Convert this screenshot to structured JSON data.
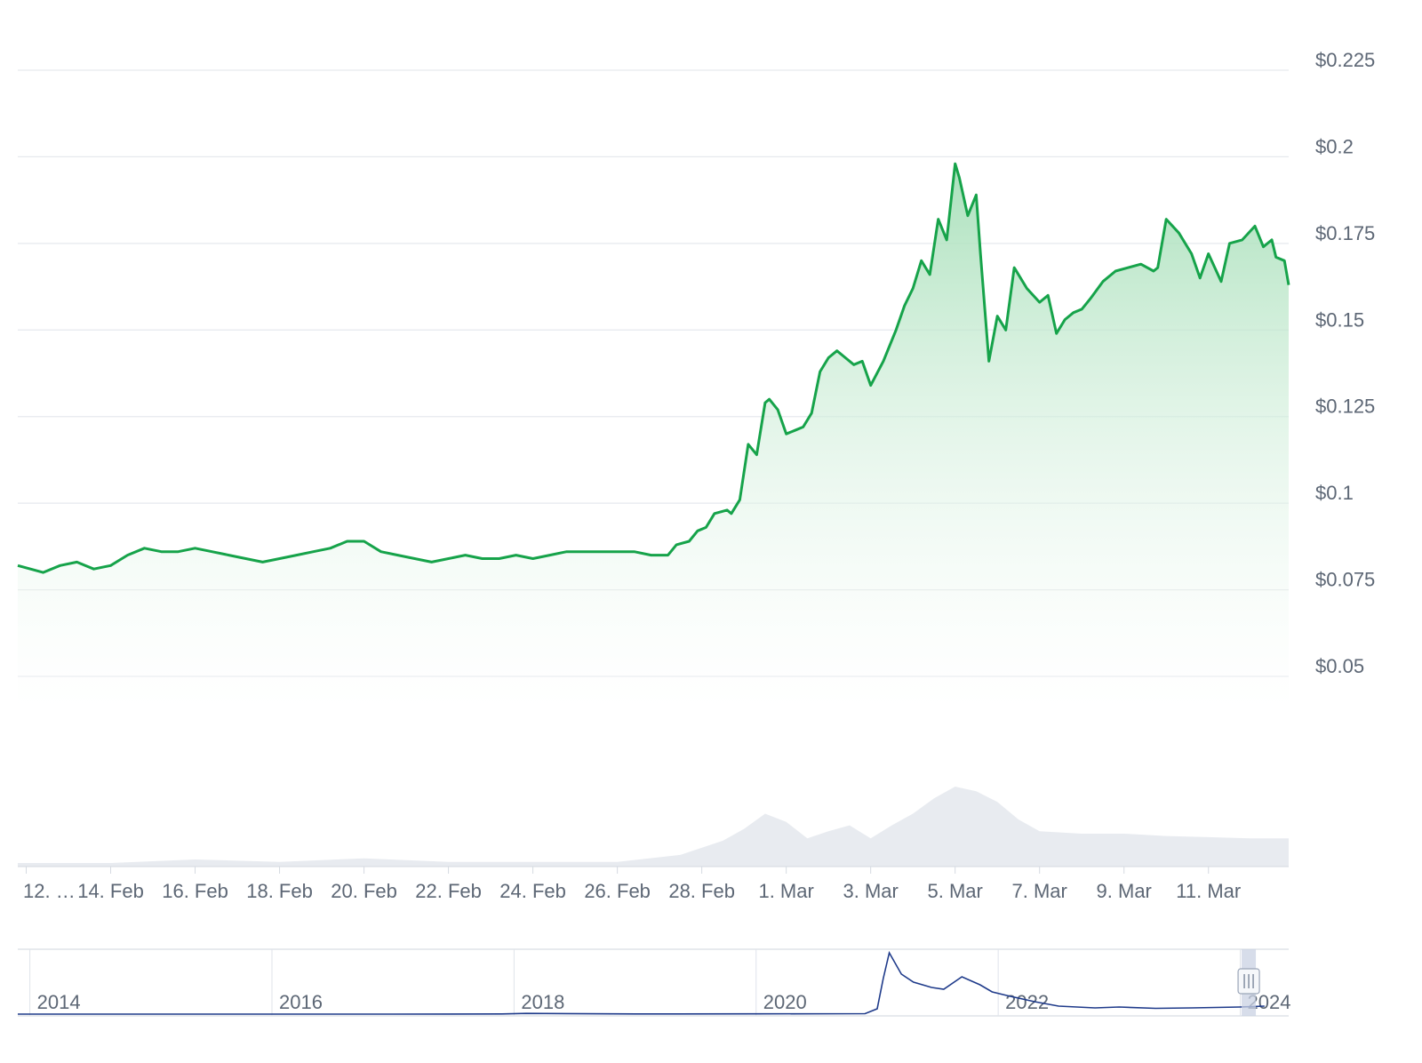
{
  "chart_data": {
    "type": "area",
    "title": "",
    "xlabel": "",
    "ylabel": "",
    "ylim": [
      0.04,
      0.235
    ],
    "y_ticks": [
      "$0.225",
      "$0.2",
      "$0.175",
      "$0.15",
      "$0.125",
      "$0.1",
      "$0.075",
      "$0.05"
    ],
    "y_tick_values": [
      0.225,
      0.2,
      0.175,
      0.15,
      0.125,
      0.1,
      0.075,
      0.05
    ],
    "x_ticks": [
      "12. …",
      "14. Feb",
      "16. Feb",
      "18. Feb",
      "20. Feb",
      "22. Feb",
      "24. Feb",
      "26. Feb",
      "28. Feb",
      "1. Mar",
      "3. Mar",
      "5. Mar",
      "7. Mar",
      "9. Mar",
      "11. Mar"
    ],
    "x_tick_days": [
      0,
      2,
      4,
      6,
      8,
      10,
      12,
      14,
      16,
      18,
      20,
      22,
      24,
      26,
      28
    ],
    "x_range_days": [
      -0.2,
      29.9
    ],
    "grid": true,
    "colors": {
      "line": "#16a34a",
      "fill_top": "#b7e4c7",
      "volume": "#e8ebf0",
      "navigator_line": "#1e3a8a",
      "navigator_handle": "#c9d2e3"
    },
    "series": [
      {
        "name": "",
        "x_days": [
          -0.2,
          0.1,
          0.4,
          0.8,
          1.2,
          1.6,
          2.0,
          2.4,
          2.8,
          3.2,
          3.6,
          4.0,
          4.4,
          4.8,
          5.2,
          5.6,
          6.0,
          6.4,
          6.8,
          7.2,
          7.6,
          8.0,
          8.4,
          8.8,
          9.2,
          9.6,
          10.0,
          10.4,
          10.8,
          11.2,
          11.6,
          12.0,
          12.4,
          12.8,
          13.2,
          13.6,
          14.0,
          14.4,
          14.8,
          15.2,
          15.4,
          15.7,
          15.9,
          16.1,
          16.3,
          16.6,
          16.7,
          16.9,
          17.1,
          17.3,
          17.5,
          17.6,
          17.8,
          18.0,
          18.2,
          18.4,
          18.6,
          18.8,
          19.0,
          19.2,
          19.4,
          19.6,
          19.8,
          20.0,
          20.3,
          20.6,
          20.8,
          21.0,
          21.2,
          21.4,
          21.6,
          21.8,
          22.0,
          22.1,
          22.3,
          22.5,
          22.6,
          22.8,
          23.0,
          23.2,
          23.4,
          23.7,
          24.0,
          24.2,
          24.4,
          24.6,
          24.8,
          25.0,
          25.2,
          25.5,
          25.8,
          26.1,
          26.4,
          26.7,
          26.8,
          27.0,
          27.3,
          27.6,
          27.8,
          28.0,
          28.3,
          28.5,
          28.8,
          29.1,
          29.3,
          29.5,
          29.6,
          29.8,
          29.9
        ],
        "values": [
          0.082,
          0.081,
          0.08,
          0.082,
          0.083,
          0.081,
          0.082,
          0.085,
          0.087,
          0.086,
          0.086,
          0.087,
          0.086,
          0.085,
          0.084,
          0.083,
          0.084,
          0.085,
          0.086,
          0.087,
          0.089,
          0.089,
          0.086,
          0.085,
          0.084,
          0.083,
          0.084,
          0.085,
          0.084,
          0.084,
          0.085,
          0.084,
          0.085,
          0.086,
          0.086,
          0.086,
          0.086,
          0.086,
          0.085,
          0.085,
          0.088,
          0.089,
          0.092,
          0.093,
          0.097,
          0.098,
          0.097,
          0.101,
          0.117,
          0.114,
          0.129,
          0.13,
          0.127,
          0.12,
          0.121,
          0.122,
          0.126,
          0.138,
          0.142,
          0.144,
          0.142,
          0.14,
          0.141,
          0.134,
          0.141,
          0.15,
          0.157,
          0.162,
          0.17,
          0.166,
          0.182,
          0.176,
          0.198,
          0.194,
          0.183,
          0.189,
          0.172,
          0.141,
          0.154,
          0.15,
          0.168,
          0.162,
          0.158,
          0.16,
          0.149,
          0.153,
          0.155,
          0.156,
          0.159,
          0.164,
          0.167,
          0.168,
          0.169,
          0.167,
          0.168,
          0.182,
          0.178,
          0.172,
          0.165,
          0.172,
          0.164,
          0.175,
          0.176,
          0.18,
          0.174,
          0.176,
          0.171,
          0.17,
          0.163
        ]
      }
    ],
    "volume": {
      "x_days": [
        -0.2,
        2,
        4,
        6,
        8,
        10,
        12,
        14,
        15.5,
        16.5,
        17,
        17.5,
        18,
        18.5,
        19,
        19.5,
        20,
        20.5,
        21,
        21.5,
        22,
        22.5,
        23,
        23.5,
        24,
        25,
        26,
        27,
        28,
        29,
        29.9
      ],
      "values": [
        3,
        3,
        6,
        4,
        7,
        4,
        4,
        4,
        10,
        22,
        32,
        45,
        38,
        24,
        30,
        35,
        24,
        35,
        45,
        58,
        68,
        64,
        55,
        40,
        30,
        28,
        28,
        26,
        25,
        24,
        24
      ]
    },
    "navigator": {
      "labels": [
        "2014",
        "2016",
        "2018",
        "2020",
        "2022",
        "2024"
      ],
      "label_years": [
        2014,
        2016,
        2018,
        2020,
        2022,
        2024
      ],
      "year_range": [
        2013.9,
        2024.4
      ],
      "x_years": [
        2013.9,
        2015,
        2016,
        2017,
        2017.9,
        2018.1,
        2019,
        2020,
        2020.9,
        2021.0,
        2021.05,
        2021.1,
        2021.2,
        2021.3,
        2021.45,
        2021.55,
        2021.7,
        2021.85,
        2021.95,
        2022.1,
        2022.3,
        2022.5,
        2022.8,
        2023,
        2023.3,
        2023.6,
        2024.0,
        2024.2
      ],
      "values": [
        0.0002,
        0.0002,
        0.0002,
        0.0005,
        0.002,
        0.008,
        0.002,
        0.003,
        0.005,
        0.06,
        0.4,
        0.69,
        0.45,
        0.36,
        0.3,
        0.28,
        0.42,
        0.33,
        0.25,
        0.2,
        0.14,
        0.09,
        0.07,
        0.08,
        0.065,
        0.07,
        0.08,
        0.09
      ]
    }
  }
}
